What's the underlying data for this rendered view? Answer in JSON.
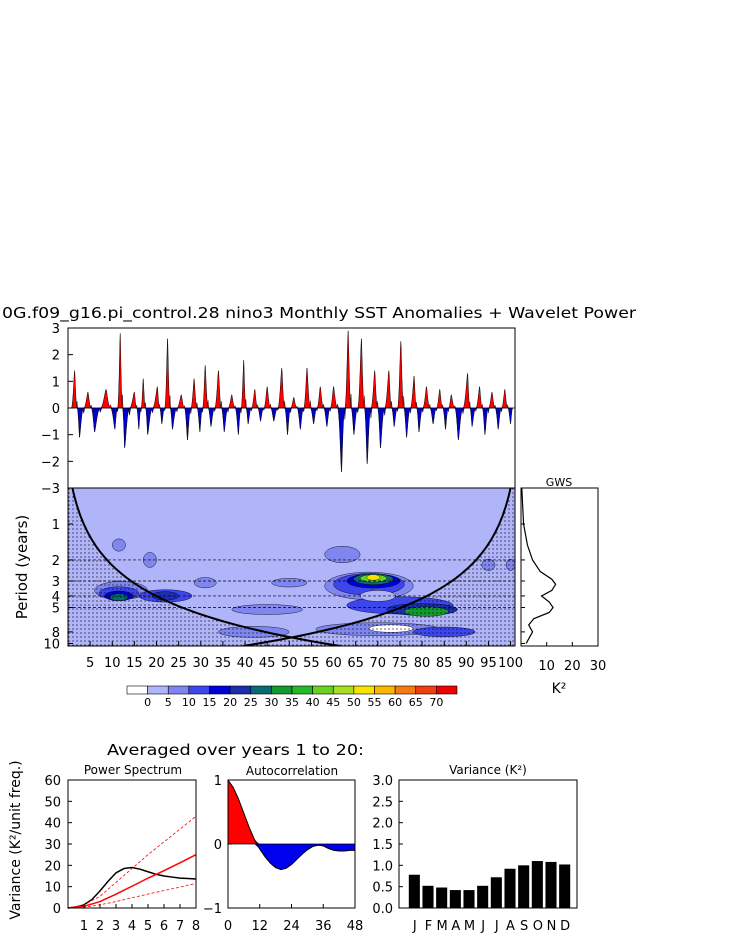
{
  "figure": {
    "title": "0G.f09_g16.pi_control.28 nino3 Monthly SST Anomalies + Wavelet Power",
    "averaged_title": "Averaged over years 1 to 20:",
    "gws_label": "GWS",
    "k2_label": "K²"
  },
  "chart_data": [
    {
      "type": "area",
      "name": "sst-anomaly-series",
      "title": "",
      "ylim": [
        -3,
        3
      ],
      "yticks": [
        3,
        2,
        1,
        0,
        -1,
        -2,
        -3
      ],
      "ytick_labels": [
        "3",
        "2",
        "1",
        "0",
        "−1",
        "−2",
        "−3"
      ],
      "xlim": [
        0,
        101
      ],
      "positive_color": "#ff0000",
      "negative_color": "#0000cc",
      "peaks": [
        {
          "x": 1.5,
          "y": 1.4
        },
        {
          "x": 2.6,
          "y": -1.1
        },
        {
          "x": 4.5,
          "y": 0.6
        },
        {
          "x": 6,
          "y": -0.9
        },
        {
          "x": 8.6,
          "y": 0.7
        },
        {
          "x": 10.6,
          "y": -0.8
        },
        {
          "x": 11.8,
          "y": 2.8
        },
        {
          "x": 12.8,
          "y": -1.5
        },
        {
          "x": 15,
          "y": 0.6
        },
        {
          "x": 16,
          "y": -0.8
        },
        {
          "x": 17,
          "y": 1.1
        },
        {
          "x": 18,
          "y": -1.0
        },
        {
          "x": 20.2,
          "y": 0.8
        },
        {
          "x": 21.2,
          "y": -0.6
        },
        {
          "x": 22.5,
          "y": 2.6
        },
        {
          "x": 23.6,
          "y": -0.8
        },
        {
          "x": 25.6,
          "y": 0.5
        },
        {
          "x": 27,
          "y": -1.2
        },
        {
          "x": 28.5,
          "y": 1.1
        },
        {
          "x": 29.8,
          "y": -0.9
        },
        {
          "x": 31,
          "y": 1.6
        },
        {
          "x": 32.3,
          "y": -0.7
        },
        {
          "x": 34,
          "y": 1.4
        },
        {
          "x": 35.3,
          "y": -0.9
        },
        {
          "x": 37,
          "y": 0.5
        },
        {
          "x": 38.5,
          "y": -1.0
        },
        {
          "x": 39.7,
          "y": 1.8
        },
        {
          "x": 40.7,
          "y": -0.6
        },
        {
          "x": 42.2,
          "y": 0.7
        },
        {
          "x": 43.5,
          "y": -0.5
        },
        {
          "x": 45,
          "y": 0.8
        },
        {
          "x": 46.5,
          "y": -0.5
        },
        {
          "x": 48.3,
          "y": 1.5
        },
        {
          "x": 49.6,
          "y": -1.0
        },
        {
          "x": 51,
          "y": 0.4
        },
        {
          "x": 52.5,
          "y": -0.8
        },
        {
          "x": 54,
          "y": 1.5
        },
        {
          "x": 55.5,
          "y": -0.6
        },
        {
          "x": 57,
          "y": 0.8
        },
        {
          "x": 58.5,
          "y": -0.7
        },
        {
          "x": 60,
          "y": 0.8
        },
        {
          "x": 61.8,
          "y": -2.4
        },
        {
          "x": 63.3,
          "y": 2.9
        },
        {
          "x": 64.6,
          "y": -1.0
        },
        {
          "x": 66.3,
          "y": 2.6
        },
        {
          "x": 67.6,
          "y": -2.1
        },
        {
          "x": 69.3,
          "y": 1.4
        },
        {
          "x": 70.6,
          "y": -1.5
        },
        {
          "x": 72.5,
          "y": 1.4
        },
        {
          "x": 73.7,
          "y": -0.7
        },
        {
          "x": 75.2,
          "y": 2.5
        },
        {
          "x": 76.5,
          "y": -1.1
        },
        {
          "x": 78.2,
          "y": 1.2
        },
        {
          "x": 79.3,
          "y": -0.9
        },
        {
          "x": 81,
          "y": 0.8
        },
        {
          "x": 82.5,
          "y": -0.6
        },
        {
          "x": 84,
          "y": 0.7
        },
        {
          "x": 85.3,
          "y": -0.8
        },
        {
          "x": 86.6,
          "y": 0.5
        },
        {
          "x": 88.2,
          "y": -1.2
        },
        {
          "x": 90.3,
          "y": 1.3
        },
        {
          "x": 91.3,
          "y": -0.7
        },
        {
          "x": 93,
          "y": 0.8
        },
        {
          "x": 94.2,
          "y": -1.0
        },
        {
          "x": 95.8,
          "y": 0.6
        },
        {
          "x": 97.2,
          "y": -0.8
        },
        {
          "x": 98.7,
          "y": 0.7
        },
        {
          "x": 100,
          "y": -0.6
        }
      ]
    },
    {
      "type": "heatmap",
      "name": "wavelet-power",
      "ylabel": "Period (years)",
      "xlim": [
        0,
        101
      ],
      "xticks": [
        5,
        10,
        15,
        20,
        25,
        30,
        35,
        40,
        45,
        50,
        55,
        60,
        65,
        70,
        75,
        80,
        85,
        90,
        95,
        100
      ],
      "yscale": "log",
      "ylim": [
        0.5,
        10.5
      ],
      "yticks": [
        1,
        2,
        3,
        4,
        5,
        8,
        10
      ],
      "ref_periods": [
        2,
        3,
        4,
        5
      ],
      "levels": [
        "0",
        "5",
        "10",
        "15",
        "20",
        "25",
        "30",
        "35",
        "40",
        "45",
        "50",
        "55",
        "60",
        "65",
        "70"
      ],
      "level_colors": [
        "#ffffff",
        "#b0b4f8",
        "#7f86f0",
        "#3d46ec",
        "#0000d8",
        "#1a2fae",
        "#0a6a72",
        "#129a30",
        "#26b826",
        "#6ad024",
        "#a8de20",
        "#f6e400",
        "#f8b800",
        "#f67a10",
        "#f03e10",
        "#ee0000"
      ],
      "background_level": 1,
      "blobs": [
        {
          "cx": 12,
          "cy": 3.6,
          "rx": 6,
          "ry": 0.55,
          "level": 2
        },
        {
          "cx": 11.5,
          "cy": 3.8,
          "rx": 4.5,
          "ry": 0.4,
          "level": 3
        },
        {
          "cx": 11.5,
          "cy": 4.0,
          "rx": 3.2,
          "ry": 0.3,
          "level": 4
        },
        {
          "cx": 11.5,
          "cy": 4.1,
          "rx": 2,
          "ry": 0.2,
          "level": 6
        },
        {
          "cx": 22,
          "cy": 4.0,
          "rx": 6,
          "ry": 0.4,
          "level": 3
        },
        {
          "cx": 22,
          "cy": 4.0,
          "rx": 3,
          "ry": 0.25,
          "level": 5
        },
        {
          "cx": 31,
          "cy": 3.1,
          "rx": 2.5,
          "ry": 0.25,
          "level": 2
        },
        {
          "cx": 18.5,
          "cy": 2.0,
          "rx": 1.5,
          "ry": 0.25,
          "level": 2
        },
        {
          "cx": 11.5,
          "cy": 1.5,
          "rx": 1.5,
          "ry": 0.15,
          "level": 2
        },
        {
          "cx": 50,
          "cy": 3.1,
          "rx": 4,
          "ry": 0.2,
          "level": 2
        },
        {
          "cx": 45,
          "cy": 5.2,
          "rx": 8,
          "ry": 0.4,
          "level": 2
        },
        {
          "cx": 42,
          "cy": 8.0,
          "rx": 8,
          "ry": 0.7,
          "level": 2
        },
        {
          "cx": 62,
          "cy": 1.8,
          "rx": 4,
          "ry": 0.25,
          "level": 2
        },
        {
          "cx": 68,
          "cy": 3.3,
          "rx": 10,
          "ry": 0.8,
          "level": 2
        },
        {
          "cx": 68,
          "cy": 3.2,
          "rx": 8,
          "ry": 0.6,
          "level": 3
        },
        {
          "cx": 69,
          "cy": 3.0,
          "rx": 6,
          "ry": 0.35,
          "level": 4
        },
        {
          "cx": 69,
          "cy": 2.9,
          "rx": 4.5,
          "ry": 0.25,
          "level": 6
        },
        {
          "cx": 69,
          "cy": 2.85,
          "rx": 3,
          "ry": 0.15,
          "level": 9
        },
        {
          "cx": 69,
          "cy": 2.8,
          "rx": 1.5,
          "ry": 0.1,
          "level": 11
        },
        {
          "cx": 75,
          "cy": 4.8,
          "rx": 12,
          "ry": 0.7,
          "level": 3
        },
        {
          "cx": 80,
          "cy": 5.2,
          "rx": 8,
          "ry": 0.5,
          "level": 5
        },
        {
          "cx": 81,
          "cy": 5.4,
          "rx": 5,
          "ry": 0.4,
          "level": 7
        },
        {
          "cx": 70,
          "cy": 4.0,
          "rx": 4,
          "ry": 0.35,
          "level": 1
        },
        {
          "cx": 70,
          "cy": 7.6,
          "rx": 14,
          "ry": 0.8,
          "level": 2
        },
        {
          "cx": 73,
          "cy": 7.5,
          "rx": 5,
          "ry": 0.4,
          "level": 0
        },
        {
          "cx": 85,
          "cy": 8.0,
          "rx": 7,
          "ry": 0.6,
          "level": 3
        },
        {
          "cx": 95,
          "cy": 2.2,
          "rx": 1.5,
          "ry": 0.2,
          "level": 2
        },
        {
          "cx": 100,
          "cy": 2.2,
          "rx": 1,
          "ry": 0.2,
          "level": 2
        }
      ]
    },
    {
      "type": "line",
      "name": "global-wavelet-spectrum",
      "title": "GWS",
      "xlabel": "K²",
      "xlim": [
        0,
        30
      ],
      "xticks": [
        10,
        20,
        30
      ],
      "periods": [
        0.5,
        1,
        1.5,
        2,
        2.5,
        2.9,
        3.2,
        3.6,
        4.0,
        4.5,
        5.0,
        5.5,
        6.2,
        7,
        8,
        10
      ],
      "values": [
        0.3,
        1.0,
        2.5,
        4.5,
        7.5,
        12.0,
        13.5,
        12.0,
        8.0,
        11.0,
        12.5,
        11.0,
        5.0,
        3.0,
        4.5,
        2.0
      ]
    },
    {
      "type": "line",
      "name": "power-spectrum",
      "title": "Power Spectrum",
      "ylabel": "Variance (K²/unit freq.)",
      "xlim": [
        0,
        8
      ],
      "ylim": [
        0,
        60
      ],
      "xticks": [
        1,
        2,
        3,
        4,
        5,
        6,
        7,
        8
      ],
      "yticks": [
        0,
        10,
        20,
        30,
        40,
        50,
        60
      ],
      "series": [
        {
          "x": [
            0,
            0.5,
            1,
            1.5,
            2,
            2.5,
            3,
            3.5,
            4,
            4.5,
            5,
            5.5,
            6,
            6.5,
            7,
            7.5,
            8
          ],
          "y": [
            0,
            0.5,
            1.5,
            4,
            8,
            12.5,
            16.5,
            18.5,
            19,
            18.2,
            17,
            15.8,
            15,
            14.5,
            14,
            13.8,
            13.6
          ],
          "color": "#000000",
          "dash": false
        },
        {
          "x": [
            0,
            1,
            2,
            3,
            4,
            5,
            6,
            7,
            8
          ],
          "y": [
            0,
            0.8,
            3,
            6.5,
            10.2,
            14,
            17.5,
            21.2,
            25
          ],
          "color": "#ff0000",
          "dash": false
        },
        {
          "x": [
            0,
            1,
            2,
            3,
            4,
            5,
            6,
            7,
            8
          ],
          "y": [
            0,
            1.5,
            5.5,
            12,
            18.5,
            25,
            31,
            37,
            43
          ],
          "color": "#ff0000",
          "dash": true
        },
        {
          "x": [
            0,
            1,
            2,
            3,
            4,
            5,
            6,
            7,
            8
          ],
          "y": [
            0,
            0.4,
            1.5,
            3,
            4.8,
            6.5,
            8.2,
            9.8,
            11.5
          ],
          "color": "#ff0000",
          "dash": true
        }
      ]
    },
    {
      "type": "area",
      "name": "autocorrelation",
      "title": "Autocorrelation",
      "xlim": [
        0,
        48
      ],
      "ylim": [
        -1,
        1
      ],
      "xticks": [
        0,
        12,
        24,
        36,
        48
      ],
      "yticks": [
        -1,
        0,
        1
      ],
      "ytick_labels": [
        "−1",
        "0",
        "1"
      ],
      "lags": [
        0,
        2,
        4,
        6,
        8,
        10,
        12,
        14,
        16,
        18,
        20,
        22,
        24,
        26,
        28,
        30,
        32,
        34,
        36,
        38,
        40,
        42,
        44,
        46,
        48
      ],
      "values": [
        1.0,
        0.88,
        0.7,
        0.48,
        0.26,
        0.07,
        -0.08,
        -0.2,
        -0.3,
        -0.37,
        -0.4,
        -0.38,
        -0.32,
        -0.24,
        -0.16,
        -0.09,
        -0.04,
        -0.02,
        -0.03,
        -0.07,
        -0.1,
        -0.11,
        -0.11,
        -0.1,
        -0.1
      ],
      "positive_color": "#ff0000",
      "negative_color": "#0000ee"
    },
    {
      "type": "bar",
      "name": "monthly-variance",
      "title": "Variance (K²)",
      "categories": [
        "J",
        "F",
        "M",
        "A",
        "M",
        "J",
        "J",
        "A",
        "S",
        "O",
        "N",
        "D"
      ],
      "values": [
        0.78,
        0.52,
        0.48,
        0.42,
        0.42,
        0.52,
        0.72,
        0.92,
        1.0,
        1.1,
        1.08,
        1.02
      ],
      "ylim": [
        0,
        3.0
      ],
      "yticks": [
        0.0,
        0.5,
        1.0,
        1.5,
        2.0,
        2.5,
        3.0
      ],
      "ytick_labels": [
        "0.0",
        "0.5",
        "1.0",
        "1.5",
        "2.0",
        "2.5",
        "3.0"
      ],
      "bar_color": "#000000"
    }
  ]
}
